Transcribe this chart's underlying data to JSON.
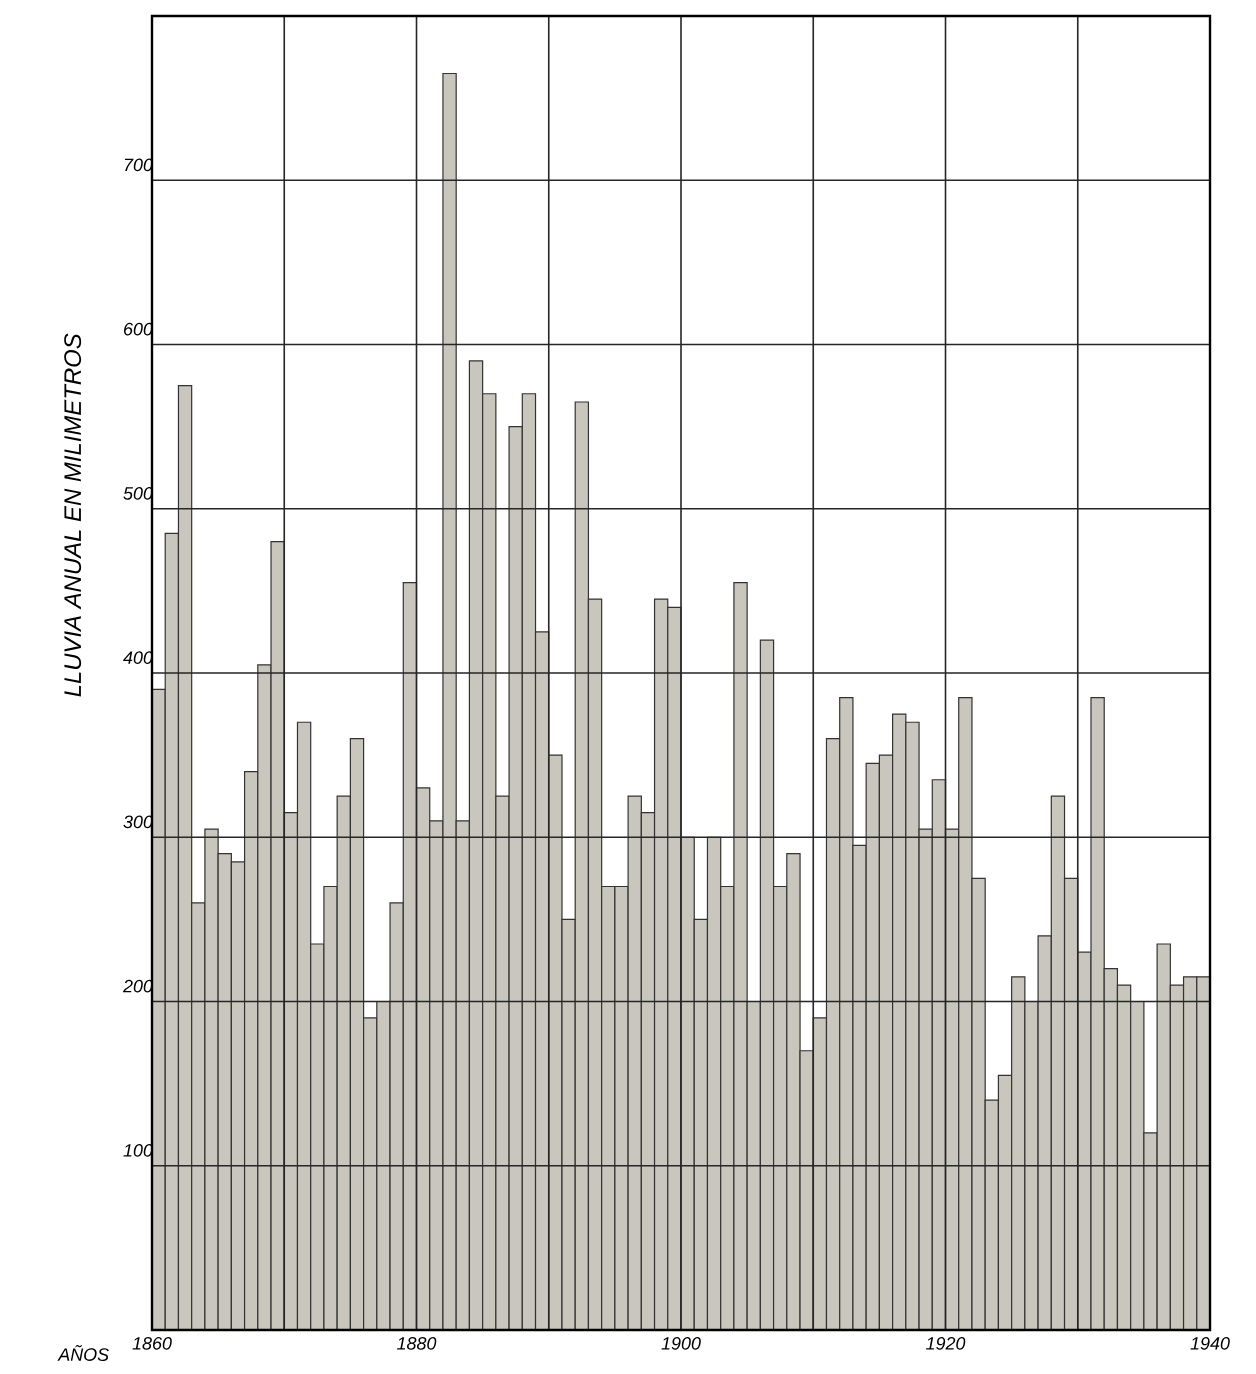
{
  "chart_data": {
    "type": "histogram",
    "xlabel": "AÑOS",
    "ylabel": "LLUVIA ANUAL EN MILIMETROS",
    "bins": [
      1860,
      1861,
      1862,
      1863,
      1864,
      1865,
      1866,
      1867,
      1868,
      1869,
      1870,
      1871,
      1872,
      1873,
      1874,
      1875,
      1876,
      1877,
      1878,
      1879,
      1880,
      1881,
      1882,
      1883,
      1884,
      1885,
      1886,
      1887,
      1888,
      1889,
      1890,
      1891,
      1892,
      1893,
      1894,
      1895,
      1896,
      1897,
      1898,
      1899,
      1900,
      1901,
      1902,
      1903,
      1904,
      1905,
      1906,
      1907,
      1908,
      1909,
      1910,
      1911,
      1912,
      1913,
      1914,
      1915,
      1916,
      1917,
      1918,
      1919,
      1920,
      1921,
      1922,
      1923,
      1924,
      1925,
      1926,
      1927,
      1928,
      1929,
      1930,
      1931,
      1932,
      1933,
      1934,
      1935,
      1936,
      1937,
      1938,
      1939,
      1940
    ],
    "values": [
      390,
      485,
      575,
      260,
      305,
      290,
      285,
      340,
      405,
      480,
      315,
      370,
      235,
      270,
      325,
      360,
      190,
      200,
      260,
      455,
      330,
      310,
      765,
      310,
      590,
      570,
      325,
      550,
      570,
      425,
      350,
      250,
      565,
      445,
      270,
      270,
      325,
      315,
      445,
      440,
      300,
      250,
      300,
      270,
      455,
      200,
      420,
      270,
      290,
      170,
      190,
      360,
      385,
      295,
      345,
      350,
      375,
      370,
      305,
      335,
      305,
      385,
      275,
      140,
      155,
      215,
      200,
      240,
      325,
      275,
      230,
      385,
      220,
      210,
      200,
      120,
      235,
      210,
      215,
      215
    ],
    "color": "#c9c7bd",
    "xlim": [
      1860,
      1940
    ],
    "ylim": [
      0,
      800
    ],
    "xticks": [
      1860,
      {
        "value": 1870,
        "label": null
      },
      1880,
      {
        "value": 1890,
        "label": null
      },
      1900,
      {
        "value": 1910,
        "label": null
      },
      1920,
      {
        "value": 1930,
        "label": null
      },
      1940
    ],
    "yticks": [
      100,
      200,
      300,
      400,
      500,
      600,
      700
    ],
    "grid": true
  }
}
